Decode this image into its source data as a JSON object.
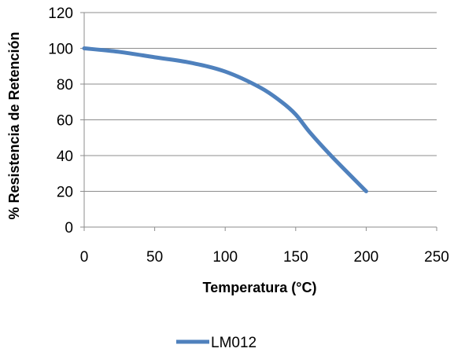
{
  "chart_data": {
    "type": "line",
    "title": "",
    "xlabel": "Temperatura (°C)",
    "ylabel": "% Resistencia de Retención",
    "xlim": [
      0,
      250
    ],
    "ylim": [
      0,
      120
    ],
    "x_ticks": [
      "0",
      "50",
      "100",
      "150",
      "200",
      "250"
    ],
    "y_ticks": [
      "0",
      "20",
      "40",
      "60",
      "80",
      "100",
      "120"
    ],
    "grid": "horizontal",
    "legend_position": "bottom",
    "series": [
      {
        "name": "LM012",
        "color": "#4F81BD",
        "x": [
          0,
          25,
          50,
          75,
          100,
          125,
          140,
          150,
          160,
          175,
          200
        ],
        "y": [
          100,
          98,
          95,
          92,
          87,
          78,
          70,
          63,
          53,
          40,
          20
        ]
      }
    ]
  }
}
